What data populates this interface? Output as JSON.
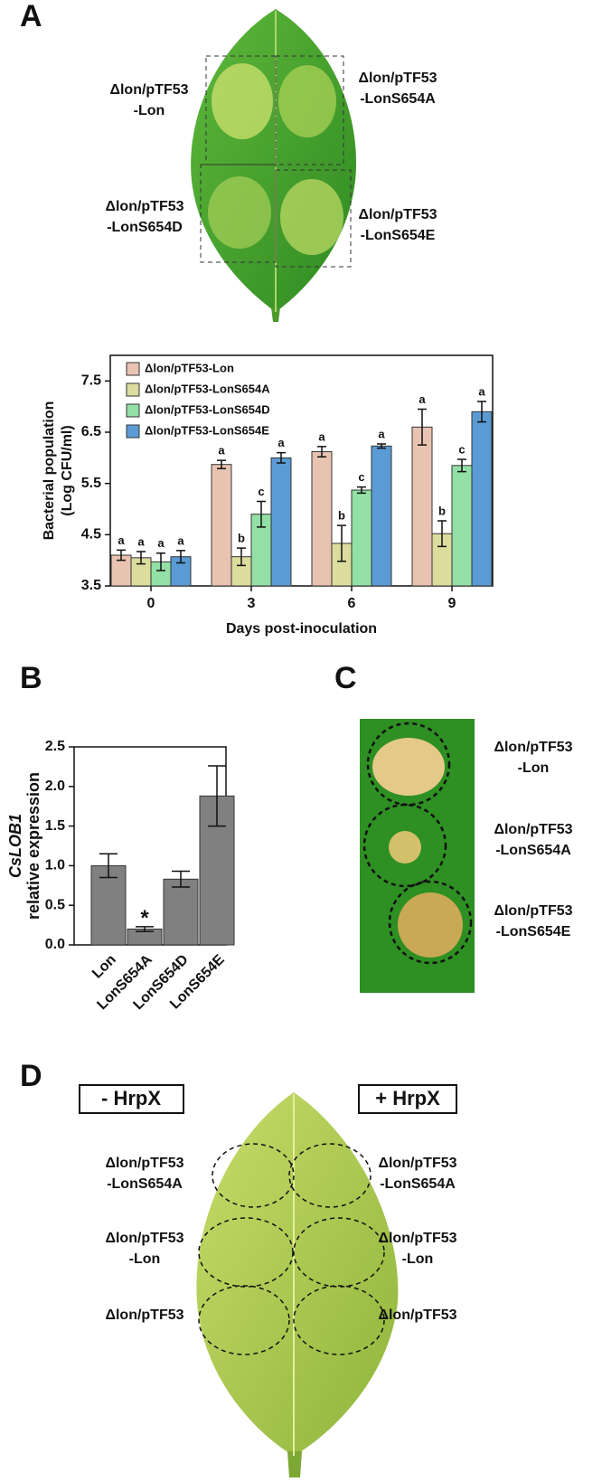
{
  "panel_letters": [
    "A",
    "B",
    "C",
    "D"
  ],
  "leaf_a_labels": [
    [
      "Δlon/pTF53",
      "-Lon"
    ],
    [
      "Δlon/pTF53",
      "-LonS654A"
    ],
    [
      "Δlon/pTF53",
      "-LonS654D"
    ],
    [
      "Δlon/pTF53",
      "-LonS654E"
    ]
  ],
  "leaf_c_labels": [
    [
      "Δlon/pTF53",
      "-Lon"
    ],
    [
      "Δlon/pTF53",
      "-LonS654A"
    ],
    [
      "Δlon/pTF53",
      "-LonS654E"
    ]
  ],
  "leaf_d": {
    "headers": [
      "- HrpX",
      "+ HrpX"
    ],
    "left_labels": [
      [
        "Δlon/pTF53",
        "-LonS654A"
      ],
      [
        "Δlon/pTF53",
        "-Lon"
      ],
      [
        "Δlon/pTF53"
      ]
    ],
    "right_labels": [
      [
        "Δlon/pTF53",
        "-LonS654A"
      ],
      [
        "Δlon/pTF53",
        "-Lon"
      ],
      [
        "Δlon/pTF53"
      ]
    ]
  },
  "chart_data": [
    {
      "type": "bar",
      "ylabel": [
        "Bacterial population",
        "(Log CFU/ml)"
      ],
      "xlabel": "Days post-inoculation",
      "categories": [
        "0",
        "3",
        "6",
        "9"
      ],
      "ylim": [
        3.5,
        8
      ],
      "yticks": [
        3.5,
        4.5,
        5.5,
        6.5,
        7.5
      ],
      "legend": "upper left",
      "series": [
        {
          "name": "Δlon/pTF53-Lon",
          "color": "#e9c3b2",
          "values": [
            4.1,
            5.87,
            6.12,
            6.6
          ],
          "errors": [
            0.1,
            0.08,
            0.1,
            0.35
          ],
          "letters": [
            "a",
            "a",
            "a",
            "a"
          ]
        },
        {
          "name": "Δlon/pTF53-LonS654A",
          "color": "#dcdc9c",
          "values": [
            4.05,
            4.07,
            4.33,
            4.52
          ],
          "errors": [
            0.12,
            0.17,
            0.35,
            0.25
          ],
          "letters": [
            "a",
            "b",
            "b",
            "b"
          ]
        },
        {
          "name": "Δlon/pTF53-LonS654D",
          "color": "#93e0a6",
          "values": [
            3.97,
            4.9,
            5.37,
            5.85
          ],
          "errors": [
            0.17,
            0.25,
            0.06,
            0.12
          ],
          "letters": [
            "a",
            "c",
            "c",
            "c"
          ]
        },
        {
          "name": "Δlon/pTF53-LonS654E",
          "color": "#5b9bd5",
          "values": [
            4.07,
            6.0,
            6.23,
            6.9
          ],
          "errors": [
            0.12,
            0.1,
            0.04,
            0.2
          ],
          "letters": [
            "a",
            "a",
            "a",
            "a"
          ]
        }
      ]
    },
    {
      "type": "bar",
      "ylabel": [
        "CsLOB1",
        "relative  expression"
      ],
      "categories": [
        "Lon",
        "LonS654A",
        "LonS654D",
        "LonS654E"
      ],
      "ylim": [
        0,
        2.5
      ],
      "yticks": [
        {
          "value": 0,
          "label": "0.0"
        },
        0.5,
        {
          "value": 1,
          "label": "1.0"
        },
        1.5,
        {
          "value": 2,
          "label": "2.0"
        },
        2.5
      ],
      "series": [
        {
          "color": "#808080",
          "values": [
            1.0,
            0.2,
            0.83,
            1.88
          ],
          "errors": [
            0.15,
            0.03,
            0.1,
            0.38
          ],
          "letters": [
            null,
            "*",
            null,
            null
          ]
        }
      ]
    }
  ]
}
